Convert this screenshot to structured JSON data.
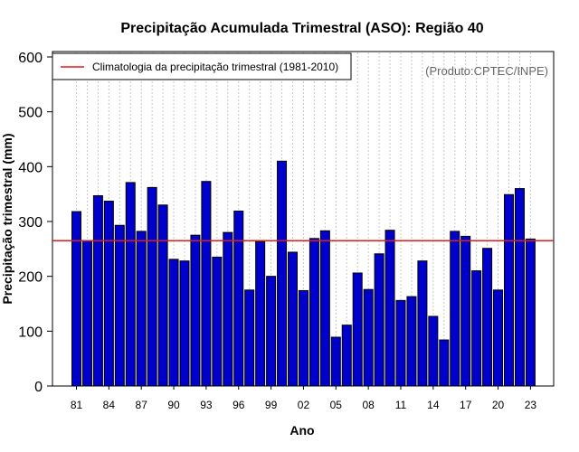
{
  "chart_data": {
    "type": "bar",
    "title": "Precipitação Acumulada Trimestral (ASO): Região 40",
    "xlabel": "Ano",
    "ylabel": "Precipitação trimestral (mm)",
    "ylim": [
      0,
      600
    ],
    "yticks": [
      "0",
      "100",
      "200",
      "300",
      "400",
      "500",
      "600"
    ],
    "xtick_labels": [
      "81",
      "84",
      "87",
      "90",
      "93",
      "96",
      "99",
      "02",
      "05",
      "08",
      "11",
      "14",
      "17",
      "20",
      "23"
    ],
    "categories": [
      "1981",
      "1982",
      "1983",
      "1984",
      "1985",
      "1986",
      "1987",
      "1988",
      "1989",
      "1990",
      "1991",
      "1992",
      "1993",
      "1994",
      "1995",
      "1996",
      "1997",
      "1998",
      "1999",
      "2000",
      "2001",
      "2002",
      "2003",
      "2004",
      "2005",
      "2006",
      "2007",
      "2008",
      "2009",
      "2010",
      "2011",
      "2012",
      "2013",
      "2014",
      "2015",
      "2016",
      "2017",
      "2018",
      "2019",
      "2020",
      "2021",
      "2022",
      "2023"
    ],
    "values": [
      318,
      265,
      347,
      337,
      293,
      371,
      282,
      362,
      330,
      231,
      228,
      275,
      373,
      235,
      280,
      319,
      175,
      263,
      200,
      410,
      244,
      174,
      269,
      283,
      89,
      111,
      206,
      176,
      241,
      284,
      156,
      163,
      228,
      127,
      84,
      282,
      273,
      210,
      251,
      175,
      349,
      360,
      268
    ],
    "climatology": 265,
    "bar_color": "#0000cd",
    "line_color": "#e31a1c",
    "grid": "vertical dotted",
    "legend": {
      "position": "top-left",
      "entries": [
        "Climatologia da precipitação trimestral (1981-2010)"
      ]
    },
    "credit": "(Produto:CPTEC/INPE)"
  }
}
